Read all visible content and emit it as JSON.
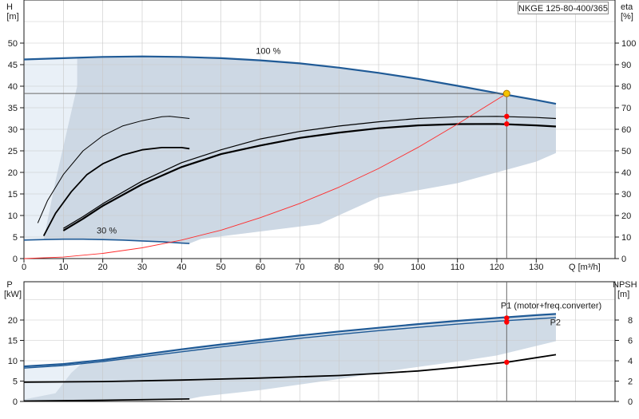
{
  "model_label": "NKGE 125-80-400/365",
  "colors": {
    "envelope": "#cdd8e4",
    "npsh_envelope": "#d0dbe6",
    "curve_blue": "#1f5a96",
    "curve_black": "#000000",
    "system_curve": "#ff2b2b",
    "duty_point": "#ff0000",
    "duty_highlight": "#f5c400",
    "grid": "#c8c8c8",
    "axis": "#1a1a1a"
  },
  "chart_data": [
    {
      "type": "line",
      "title": "",
      "x_axis": {
        "label": "Q [m³/h]",
        "range": [
          0,
          150
        ],
        "ticks": [
          0,
          10,
          20,
          30,
          40,
          50,
          60,
          70,
          80,
          90,
          100,
          110,
          120,
          130
        ]
      },
      "y_axis_left": {
        "label_top": "H",
        "label_bottom": "[m]",
        "range": [
          0,
          50
        ],
        "ticks": [
          0,
          5,
          10,
          15,
          20,
          25,
          30,
          35,
          40,
          45,
          50
        ]
      },
      "y_axis_right": {
        "label_top": "eta",
        "label_bottom": "[%]",
        "range": [
          0,
          100
        ],
        "ticks": [
          0,
          10,
          20,
          30,
          40,
          50,
          60,
          70,
          80,
          90,
          100
        ]
      },
      "grid": true,
      "annotations": [
        {
          "text": "100 %",
          "x": 62,
          "y": 47.5
        },
        {
          "text": "30 %",
          "x": 21,
          "y": 5.8
        }
      ],
      "duty_point": {
        "q": 122.5,
        "h": 38.3
      },
      "series": [
        {
          "role": "head_100",
          "x": [
            0,
            10,
            20,
            30,
            40,
            50,
            60,
            70,
            80,
            90,
            100,
            110,
            120,
            130,
            135
          ],
          "y": [
            46.2,
            46.5,
            46.8,
            46.9,
            46.8,
            46.5,
            46.0,
            45.3,
            44.3,
            43.1,
            41.7,
            40.1,
            38.4,
            36.8,
            35.9
          ]
        },
        {
          "role": "head_30",
          "x": [
            0,
            5,
            10,
            15,
            20,
            25,
            30,
            35,
            40,
            42
          ],
          "y": [
            4.3,
            4.4,
            4.5,
            4.5,
            4.4,
            4.3,
            4.1,
            3.9,
            3.6,
            3.5
          ]
        },
        {
          "role": "eta_1",
          "x": [
            3.5,
            6,
            10,
            15,
            20,
            25,
            30,
            35,
            37,
            42
          ],
          "y": [
            16.5,
            27,
            39,
            50,
            57,
            61.5,
            64,
            65.8,
            66,
            65
          ]
        },
        {
          "role": "eta_2",
          "x": [
            5,
            8,
            12,
            16,
            20,
            25,
            30,
            35,
            40,
            42
          ],
          "y": [
            10.5,
            21,
            31,
            39,
            44,
            48,
            50.5,
            51.5,
            51.5,
            51
          ]
        },
        {
          "role": "eta_3",
          "x": [
            10,
            15,
            20,
            30,
            40,
            50,
            60,
            70,
            80,
            90,
            100,
            110,
            120,
            130,
            135
          ],
          "y": [
            14,
            19.5,
            25.5,
            36,
            44.5,
            50.5,
            55.5,
            59,
            61.5,
            63.5,
            65,
            65.8,
            66,
            65.5,
            65
          ]
        },
        {
          "role": "eta_4",
          "x": [
            10,
            15,
            20,
            30,
            40,
            50,
            60,
            70,
            80,
            90,
            100,
            110,
            120,
            130,
            135
          ],
          "y": [
            13,
            18.5,
            24.5,
            34.5,
            42.5,
            48.5,
            52.5,
            56,
            58.5,
            60.5,
            61.8,
            62.4,
            62.5,
            61.8,
            61.3
          ]
        },
        {
          "role": "system_curve",
          "x": [
            0,
            10,
            20,
            30,
            40,
            50,
            60,
            70,
            80,
            90,
            100,
            110,
            122.5
          ],
          "y": [
            0,
            0.35,
            1.2,
            2.5,
            4.3,
            6.6,
            9.5,
            12.8,
            16.6,
            20.9,
            25.8,
            31.2,
            38.3
          ]
        },
        {
          "role": "duty_points_eta",
          "x": [
            122.5,
            122.5
          ],
          "y": [
            66,
            62.5
          ]
        }
      ]
    },
    {
      "type": "line",
      "title": "",
      "x_axis": {
        "range": [
          0,
          150
        ]
      },
      "y_axis_left": {
        "label_top": "P",
        "label_bottom": "[kW]",
        "range": [
          0,
          25
        ],
        "ticks": [
          0,
          5,
          10,
          15,
          20
        ]
      },
      "y_axis_right": {
        "label_top": "NPSH",
        "label_bottom": "[m]",
        "range": [
          0,
          10
        ],
        "ticks": [
          0,
          2,
          4,
          6,
          8
        ]
      },
      "grid": true,
      "series": [
        {
          "name": "P1 (motor+freq.converter)",
          "x": [
            0,
            10,
            20,
            30,
            40,
            50,
            60,
            70,
            80,
            90,
            100,
            110,
            120,
            130,
            135
          ],
          "y": [
            8.6,
            9.2,
            10.2,
            11.5,
            12.8,
            14.0,
            15.1,
            16.2,
            17.2,
            18.1,
            19.0,
            19.8,
            20.5,
            21.2,
            21.5
          ]
        },
        {
          "name": "P2",
          "x": [
            0,
            10,
            20,
            30,
            40,
            50,
            60,
            70,
            80,
            90,
            100,
            110,
            120,
            130,
            135
          ],
          "y": [
            8.2,
            8.8,
            9.8,
            11.0,
            12.2,
            13.4,
            14.5,
            15.5,
            16.5,
            17.4,
            18.2,
            19.0,
            19.7,
            20.3,
            20.6
          ]
        },
        {
          "role": "npsh",
          "x": [
            0,
            20,
            40,
            60,
            80,
            90,
            100,
            110,
            122.5,
            130,
            135
          ],
          "y": [
            1.9,
            1.95,
            2.1,
            2.3,
            2.55,
            2.75,
            3.0,
            3.35,
            3.85,
            4.3,
            4.6
          ]
        },
        {
          "role": "low_power",
          "x": [
            0,
            20,
            42
          ],
          "y": [
            0.1,
            0.3,
            0.6
          ]
        },
        {
          "role": "duty_points",
          "x": [
            122.5,
            122.5
          ],
          "y": [
            20.5,
            19.5
          ],
          "npsh_point": 3.85
        }
      ]
    }
  ]
}
